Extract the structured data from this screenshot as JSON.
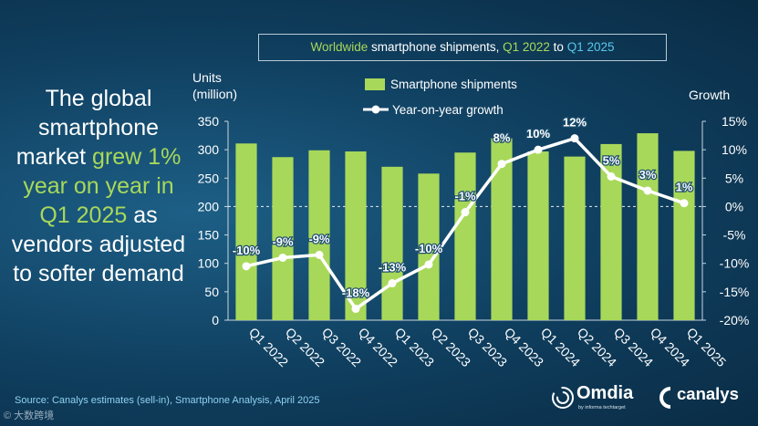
{
  "headline": {
    "p1": "The global smartphone market ",
    "highlight": "grew 1% year on year in Q1 2025",
    "p2": " as vendors adjusted to softer demand"
  },
  "title": {
    "part1": "Worldwide",
    "part2": " smartphone shipments, ",
    "part3": "Q1 2022",
    "part4": " to ",
    "part5": "Q1 2025"
  },
  "source": "Source: Canalys estimates (sell-in), Smartphone Analysis, April 2025",
  "watermark": "© 大数跨境",
  "logos": {
    "omdia": "Omdia",
    "omdia_sub": "by informa techtarget",
    "canalys": "canalys"
  },
  "colors": {
    "bar": "#a8d85a",
    "line": "#ffffff",
    "accent_green": "#a8d85a",
    "accent_blue": "#5bc7eb"
  },
  "chart_data": {
    "type": "bar+line",
    "title": "Worldwide smartphone shipments, Q1 2022 to Q1 2025",
    "categories": [
      "Q1 2022",
      "Q2 2022",
      "Q3 2022",
      "Q4 2022",
      "Q1 2023",
      "Q2 2023",
      "Q3 2023",
      "Q4 2023",
      "Q1 2024",
      "Q2 2024",
      "Q3 2024",
      "Q4 2024",
      "Q1 2025"
    ],
    "series": [
      {
        "name": "Smartphone shipments",
        "type": "bar",
        "axis": "left",
        "values": [
          311,
          287,
          299,
          297,
          270,
          258,
          295,
          320,
          297,
          288,
          310,
          329,
          298
        ]
      },
      {
        "name": "Year-on-year growth",
        "type": "line",
        "axis": "right",
        "values": [
          -10.5,
          -9.0,
          -8.5,
          -18,
          -13.5,
          -10.2,
          -1,
          7.5,
          10,
          12,
          5.3,
          2.8,
          0.6
        ]
      }
    ],
    "data_labels": [
      "-10%",
      "-9%",
      "-9%",
      "-18%",
      "-13%",
      "-10%",
      "-1%",
      "8%",
      "10%",
      "12%",
      "5%",
      "3%",
      "1%"
    ],
    "y_left": {
      "label_line1": "Units",
      "label_line2": "(million)",
      "min": 0,
      "max": 350,
      "ticks": [
        0,
        50,
        100,
        150,
        200,
        250,
        300,
        350
      ]
    },
    "y_right": {
      "label": "Growth",
      "min": -20,
      "max": 15,
      "ticks": [
        "15%",
        "10%",
        "5%",
        "0%",
        "-5%",
        "-10%",
        "-15%",
        "-20%"
      ]
    },
    "zero_line": "dashed"
  }
}
